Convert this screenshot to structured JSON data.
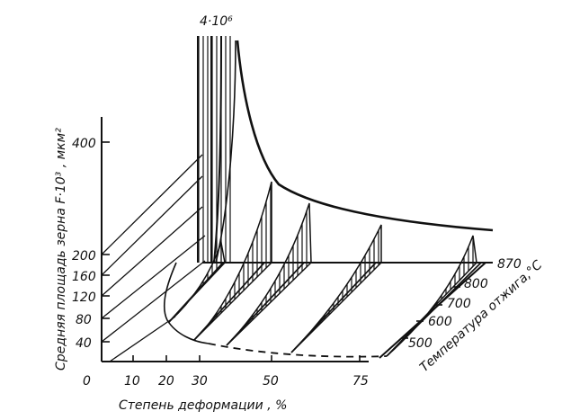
{
  "chart_data": {
    "type": "3d-surface",
    "top_label": "4·10⁶",
    "x_axis": {
      "label": "Степень деформации , %",
      "ticks": [
        "0",
        "10",
        "20",
        "30",
        "50",
        "75"
      ]
    },
    "y_axis": {
      "label": "Средняя площадь зерна F·10³ , мкм²",
      "ticks": [
        "40",
        "80",
        "120",
        "160",
        "200",
        "400"
      ]
    },
    "z_axis": {
      "label": "Температура отжига,°С",
      "ticks": [
        "500",
        "600",
        "700",
        "800",
        "870"
      ]
    },
    "envelope_temperature": "870"
  }
}
